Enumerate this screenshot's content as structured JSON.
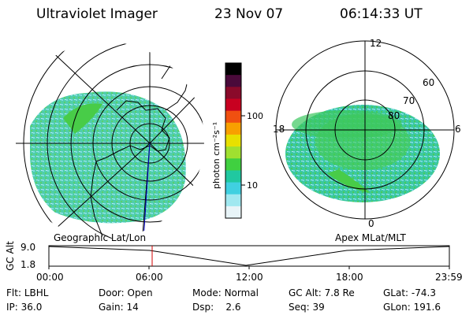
{
  "header": {
    "instrument": "Ultraviolet Imager",
    "date": "23 Nov 07",
    "time": "06:14:33 UT"
  },
  "colorbar": {
    "unit_label": "photon cm⁻²s⁻¹",
    "ticks": [
      "100",
      "10"
    ],
    "colors": [
      "#000000",
      "#4a0a3a",
      "#8a0a2a",
      "#c80020",
      "#f05010",
      "#f8a000",
      "#e8e000",
      "#a0e030",
      "#40d040",
      "#20c8a0",
      "#40d0e0",
      "#a0e8f0",
      "#e8f4f8"
    ]
  },
  "left_map": {
    "caption": "Geographic Lat/Lon"
  },
  "right_map": {
    "caption": "Apex MLat/MLT",
    "hour_labels": [
      "12",
      "18",
      "6",
      "0"
    ],
    "lat_labels": [
      "60",
      "70",
      "80"
    ]
  },
  "altitude_plot": {
    "ylabel": "GC Alt",
    "yticks": [
      "9.0",
      "1.8"
    ],
    "xticks": [
      "00:00",
      "06:00",
      "12:00",
      "18:00",
      "23:59"
    ]
  },
  "status": {
    "flt_label": "Flt:",
    "flt_value": "LBHL",
    "ip_label": "IP:",
    "ip_value": "36.0",
    "door_label": "Door:",
    "door_value": "Open",
    "gain_label": "Gain:",
    "gain_value": "14",
    "mode_label": "Mode:",
    "mode_value": "Normal",
    "dsp_label": "Dsp:",
    "dsp_value": "2.6",
    "gcalt_label": "GC Alt:",
    "gcalt_value": "7.8 Re",
    "seq_label": "Seq:",
    "seq_value": "39",
    "glat_label": "GLat:",
    "glat_value": "-74.3",
    "glon_label": "GLon:",
    "glon_value": "191.6"
  }
}
